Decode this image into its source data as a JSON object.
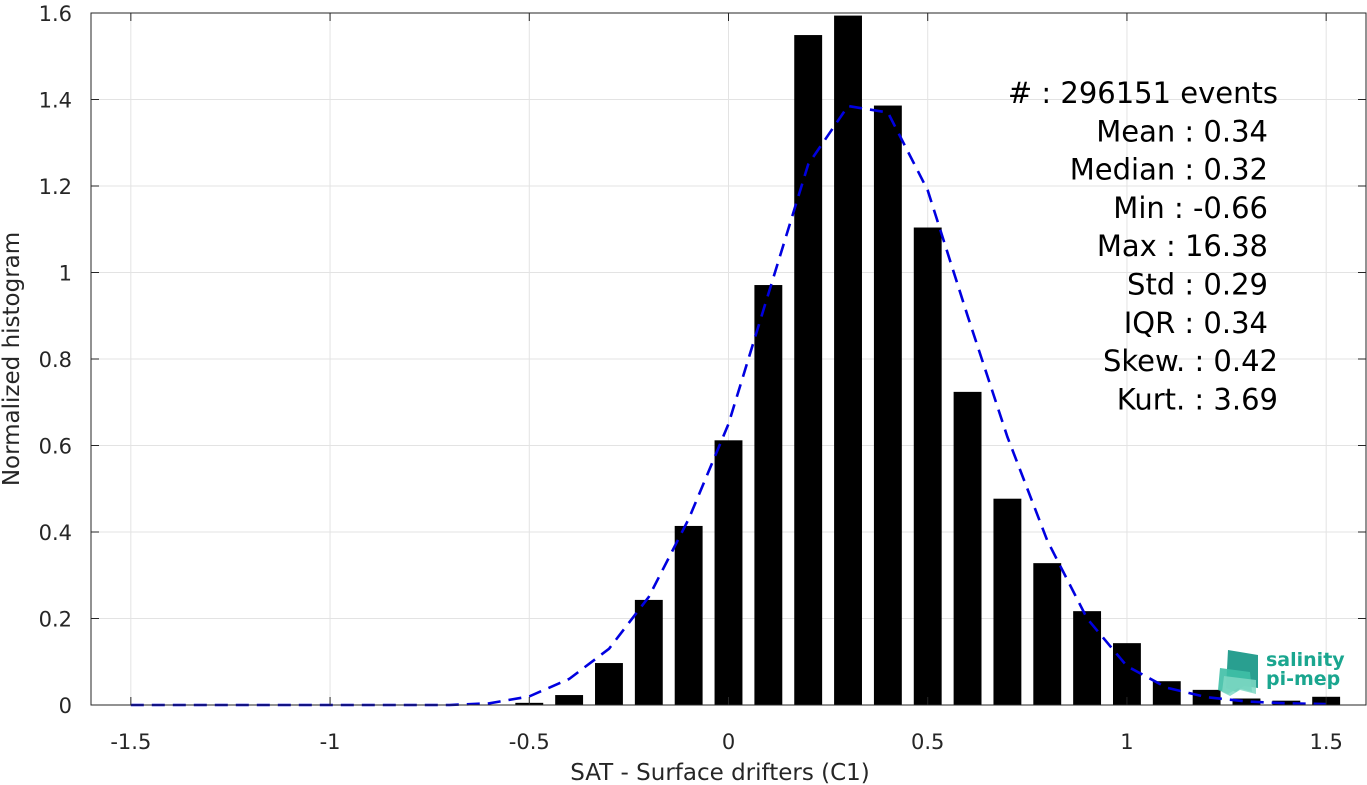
{
  "chart_data": {
    "type": "bar",
    "xlabel": "SAT - Surface drifters (C1)",
    "ylabel": "Normalized histogram",
    "xlim": [
      -1.6,
      1.6
    ],
    "ylim": [
      0,
      1.6
    ],
    "x_ticks": [
      "-1.5",
      "-1",
      "-0.5",
      "0",
      "0.5",
      "1",
      "1.5"
    ],
    "x_tick_values": [
      -1.5,
      -1,
      -0.5,
      0,
      0.5,
      1,
      1.5
    ],
    "y_ticks": [
      "0",
      "0.2",
      "0.4",
      "0.6",
      "0.8",
      "1",
      "1.2",
      "1.4",
      "1.6"
    ],
    "y_tick_values": [
      0,
      0.2,
      0.4,
      0.6,
      0.8,
      1,
      1.2,
      1.4,
      1.6
    ],
    "grid": true,
    "bar_width": 0.07,
    "bars": {
      "x": [
        -0.5,
        -0.4,
        -0.3,
        -0.2,
        -0.1,
        0,
        0.1,
        0.2,
        0.3,
        0.4,
        0.5,
        0.6,
        0.7,
        0.8,
        0.9,
        1.0,
        1.1,
        1.2,
        1.3,
        1.4,
        1.5
      ],
      "values": [
        0.005,
        0.023,
        0.097,
        0.243,
        0.414,
        0.612,
        0.971,
        1.549,
        1.594,
        1.386,
        1.104,
        0.724,
        0.477,
        0.328,
        0.217,
        0.143,
        0.055,
        0.035,
        0.015,
        0.01,
        0.019
      ]
    },
    "fit_curve": {
      "style": "dashed",
      "color": "#0000e0",
      "x": [
        -1.5,
        -1.4,
        -1.3,
        -1.2,
        -1.1,
        -1.0,
        -0.9,
        -0.8,
        -0.7,
        -0.6,
        -0.5,
        -0.4,
        -0.3,
        -0.2,
        -0.1,
        0.0,
        0.1,
        0.2,
        0.3,
        0.4,
        0.5,
        0.6,
        0.7,
        0.8,
        0.9,
        1.0,
        1.1,
        1.2,
        1.3,
        1.4,
        1.5
      ],
      "y": [
        0.0,
        0.0,
        0.0,
        0.0,
        0.0,
        0.0,
        0.0,
        0.0,
        0.0,
        0.004,
        0.02,
        0.06,
        0.13,
        0.25,
        0.43,
        0.65,
        0.95,
        1.25,
        1.385,
        1.37,
        1.19,
        0.9,
        0.62,
        0.38,
        0.2,
        0.09,
        0.04,
        0.018,
        0.008,
        0.004,
        0.002
      ]
    },
    "annotation_lines": [
      "#  : 296151 events",
      "Mean : 0.34",
      "Median : 0.32",
      "Min : -0.66",
      "Max : 16.38",
      "Std : 0.29",
      "IQR : 0.34",
      "Skew. : 0.42",
      "Kurt. : 3.69"
    ]
  },
  "logo": {
    "line1": "salinity",
    "line2": "pi-mep",
    "color": "#1aa68f"
  }
}
